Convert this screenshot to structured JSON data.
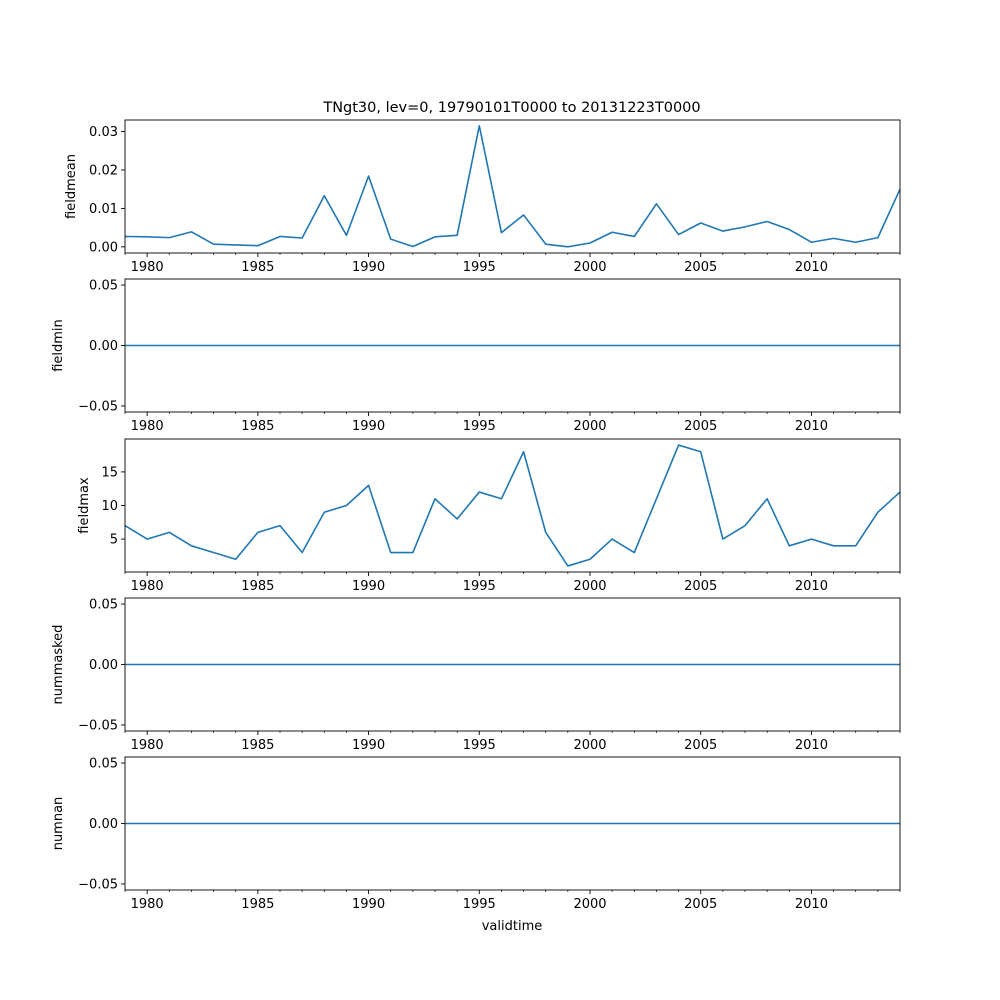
{
  "chart_data": {
    "type": "line",
    "title": "TNgt30, lev=0, 19790101T0000 to 20131223T0000",
    "xlabel": "validtime",
    "xlim": [
      1979,
      2014
    ],
    "x_major_ticks": [
      1980,
      1985,
      1990,
      1995,
      2000,
      2005,
      2010
    ],
    "x_tick_labels": [
      "1980",
      "1985",
      "1990",
      "1995",
      "2000",
      "2005",
      "2010"
    ],
    "x": [
      1979,
      1980,
      1981,
      1982,
      1983,
      1984,
      1985,
      1986,
      1987,
      1988,
      1989,
      1990,
      1991,
      1992,
      1993,
      1994,
      1995,
      1996,
      1997,
      1998,
      1999,
      2000,
      2001,
      2002,
      2003,
      2004,
      2005,
      2006,
      2007,
      2008,
      2009,
      2010,
      2011,
      2012,
      2013,
      2014
    ],
    "line_color": "#1f77b4",
    "panels": [
      {
        "ylabel": "fieldmean",
        "ylim": [
          -0.0016,
          0.033
        ],
        "yticks": [
          0.0,
          0.01,
          0.02,
          0.03
        ],
        "ytick_labels": [
          "0.00",
          "0.01",
          "0.02",
          "0.03"
        ],
        "values": [
          0.0027,
          0.0026,
          0.0024,
          0.0039,
          0.0007,
          0.0005,
          0.0003,
          0.0027,
          0.0023,
          0.0133,
          0.003,
          0.0184,
          0.002,
          0.0001,
          0.0026,
          0.003,
          0.0315,
          0.0037,
          0.0083,
          0.0007,
          0.0,
          0.001,
          0.0038,
          0.0027,
          0.0112,
          0.0032,
          0.0062,
          0.0041,
          0.0052,
          0.0066,
          0.0045,
          0.0012,
          0.0022,
          0.0012,
          0.0024,
          0.015
        ]
      },
      {
        "ylabel": "fieldmin",
        "ylim": [
          -0.055,
          0.055
        ],
        "yticks": [
          -0.05,
          0.0,
          0.05
        ],
        "ytick_labels": [
          "−0.05",
          "0.00",
          "0.05"
        ],
        "values": [
          0,
          0,
          0,
          0,
          0,
          0,
          0,
          0,
          0,
          0,
          0,
          0,
          0,
          0,
          0,
          0,
          0,
          0,
          0,
          0,
          0,
          0,
          0,
          0,
          0,
          0,
          0,
          0,
          0,
          0,
          0,
          0,
          0,
          0,
          0,
          0
        ]
      },
      {
        "ylabel": "fieldmax",
        "ylim": [
          0.1,
          19.9
        ],
        "yticks": [
          5,
          10,
          15
        ],
        "ytick_labels": [
          "5",
          "10",
          "15"
        ],
        "values": [
          7,
          5,
          6,
          4,
          3,
          2,
          6,
          7,
          3,
          9,
          10,
          13,
          3,
          3,
          11,
          8,
          12,
          11,
          18,
          6,
          1,
          2,
          5,
          3,
          11,
          19,
          18,
          5,
          7,
          11,
          4,
          5,
          4,
          4,
          9,
          12
        ]
      },
      {
        "ylabel": "nummasked",
        "ylim": [
          -0.055,
          0.055
        ],
        "yticks": [
          -0.05,
          0.0,
          0.05
        ],
        "ytick_labels": [
          "−0.05",
          "0.00",
          "0.05"
        ],
        "values": [
          0,
          0,
          0,
          0,
          0,
          0,
          0,
          0,
          0,
          0,
          0,
          0,
          0,
          0,
          0,
          0,
          0,
          0,
          0,
          0,
          0,
          0,
          0,
          0,
          0,
          0,
          0,
          0,
          0,
          0,
          0,
          0,
          0,
          0,
          0,
          0
        ]
      },
      {
        "ylabel": "numnan",
        "ylim": [
          -0.055,
          0.055
        ],
        "yticks": [
          -0.05,
          0.0,
          0.05
        ],
        "ytick_labels": [
          "−0.05",
          "0.00",
          "0.05"
        ],
        "values": [
          0,
          0,
          0,
          0,
          0,
          0,
          0,
          0,
          0,
          0,
          0,
          0,
          0,
          0,
          0,
          0,
          0,
          0,
          0,
          0,
          0,
          0,
          0,
          0,
          0,
          0,
          0,
          0,
          0,
          0,
          0,
          0,
          0,
          0,
          0,
          0
        ]
      }
    ]
  }
}
